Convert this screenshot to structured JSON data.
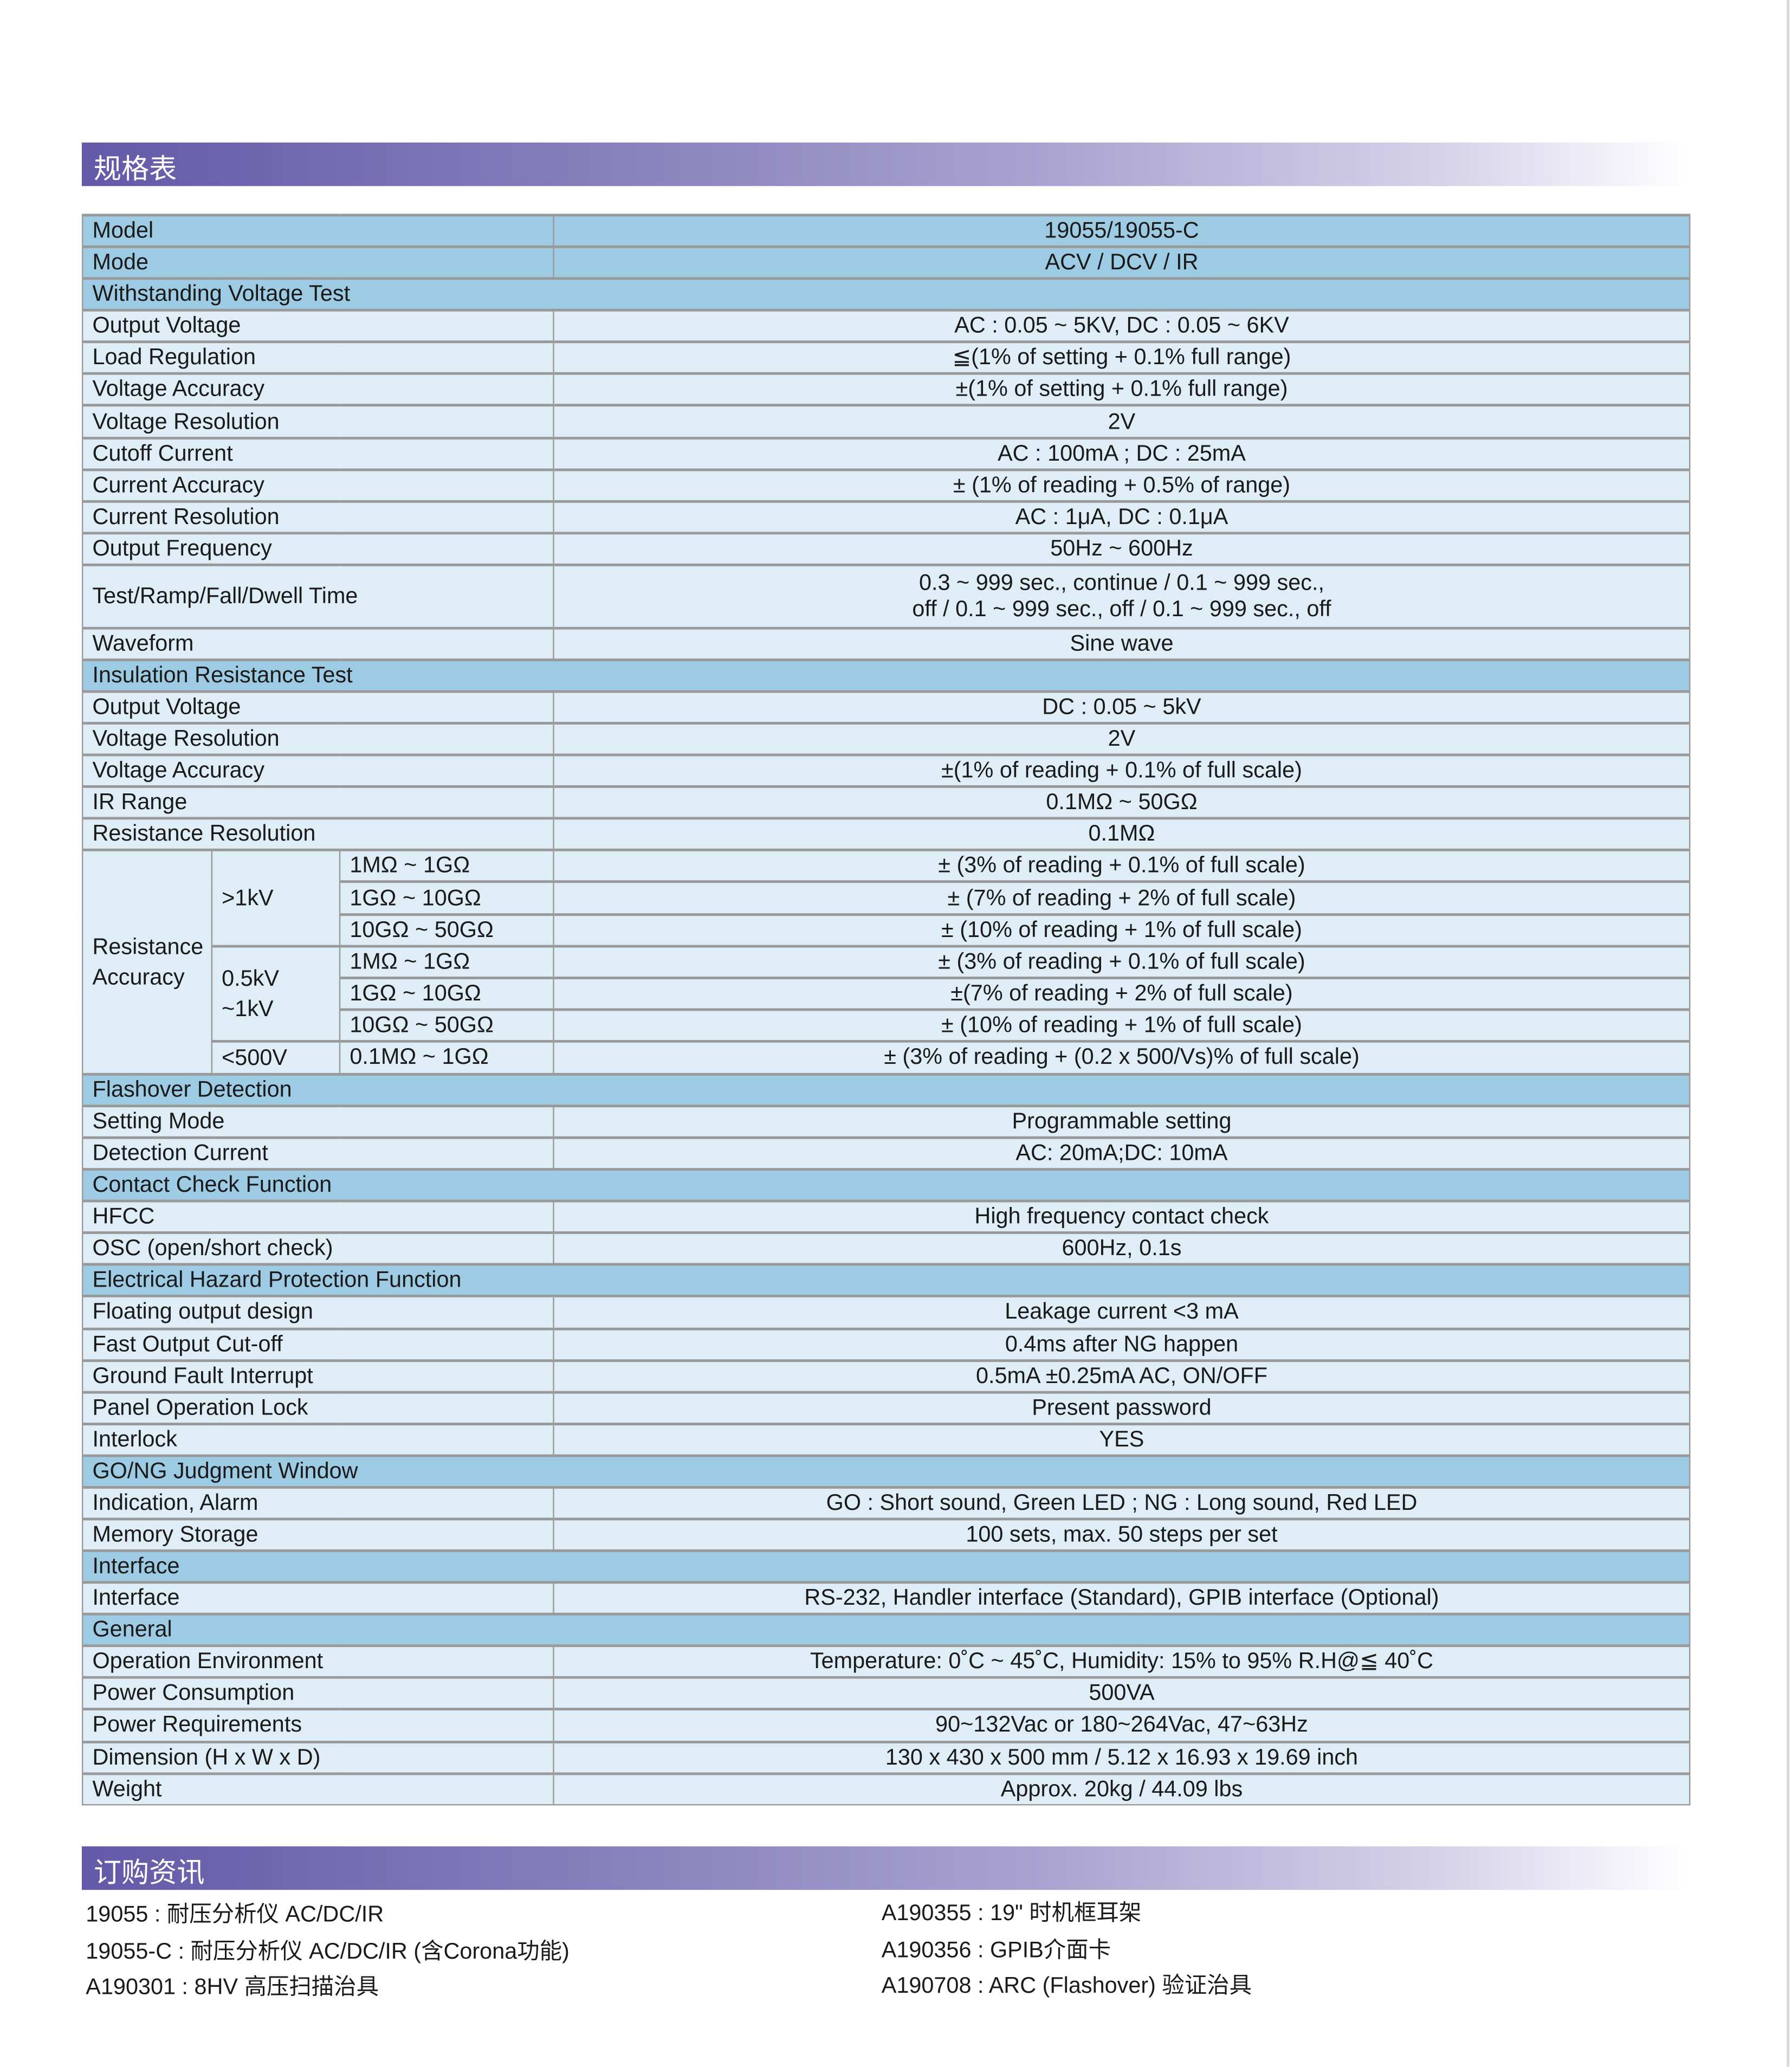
{
  "spec_title": "规格表",
  "order_title": "订购资讯",
  "colors": {
    "section_row": "#9dcbe3",
    "item_row": "#deedf6",
    "band_start": "#6359a8"
  },
  "header_rows": [
    {
      "label": "Model",
      "value": "19055/19055-C"
    },
    {
      "label": "Mode",
      "value": "ACV / DCV / IR"
    }
  ],
  "sections": [
    {
      "title": "Withstanding Voltage Test",
      "rows": [
        {
          "label": "Output Voltage",
          "value": "AC : 0.05 ~ 5KV, DC : 0.05 ~ 6KV"
        },
        {
          "label": "Load Regulation",
          "value": "≦(1% of setting + 0.1% full range)"
        },
        {
          "label": "Voltage Accuracy",
          "value": "±(1% of setting + 0.1% full range)"
        },
        {
          "label": "Voltage Resolution",
          "value": "2V"
        },
        {
          "label": "Cutoff Current",
          "value": "AC : 100mA ; DC : 25mA"
        },
        {
          "label": "Current Accuracy",
          "value": "± (1% of reading + 0.5% of range)"
        },
        {
          "label": "Current Resolution",
          "value": "AC : 1μA, DC : 0.1μA"
        },
        {
          "label": "Output Frequency",
          "value": "50Hz ~ 600Hz"
        },
        {
          "label": "Test/Ramp/Fall/Dwell Time",
          "value": "0.3 ~ 999 sec., continue / 0.1 ~ 999 sec.,",
          "value2": "off / 0.1 ~ 999 sec., off / 0.1 ~ 999 sec., off"
        },
        {
          "label": "Waveform",
          "value": "Sine wave"
        }
      ]
    },
    {
      "title": "Insulation Resistance Test",
      "rows": [
        {
          "label": "Output Voltage",
          "value": "DC : 0.05 ~ 5kV"
        },
        {
          "label": "Voltage Resolution",
          "value": "2V"
        },
        {
          "label": "Voltage Accuracy",
          "value": "±(1% of reading + 0.1%  of full scale)"
        },
        {
          "label": "IR Range",
          "value": "0.1MΩ ~ 50GΩ"
        },
        {
          "label": "Resistance Resolution",
          "value": "0.1MΩ"
        }
      ],
      "resistance_accuracy": {
        "label_line1": "Resistance",
        "label_line2": "Accuracy",
        "groups": [
          {
            "voltage": ">1kV",
            "voltage2": "",
            "rows": [
              {
                "range": "1MΩ ~ 1GΩ",
                "value": "± (3% of reading + 0.1% of full scale)"
              },
              {
                "range": "1GΩ ~ 10GΩ",
                "value": "± (7% of reading + 2% of full scale)"
              },
              {
                "range": "10GΩ ~ 50GΩ",
                "value": "± (10% of reading + 1% of full scale)"
              }
            ]
          },
          {
            "voltage": "0.5kV",
            "voltage2": "~1kV",
            "rows": [
              {
                "range": "1MΩ ~ 1GΩ",
                "value": "± (3% of reading + 0.1% of full scale)"
              },
              {
                "range": "1GΩ ~ 10GΩ",
                "value": "±(7% of reading + 2% of full scale)"
              },
              {
                "range": "10GΩ ~ 50GΩ",
                "value": "± (10% of reading + 1% of full scale)"
              }
            ]
          },
          {
            "voltage": "<500V",
            "voltage2": "",
            "rows": [
              {
                "range": "0.1MΩ ~ 1GΩ",
                "value": "± (3% of reading + (0.2 x 500/Vs)%  of full scale)"
              }
            ]
          }
        ]
      }
    },
    {
      "title": "Flashover Detection",
      "rows": [
        {
          "label": "Setting Mode",
          "value": "Programmable setting"
        },
        {
          "label": "Detection Current",
          "value": "AC: 20mA;DC: 10mA"
        }
      ]
    },
    {
      "title": "Contact Check Function",
      "rows": [
        {
          "label": "HFCC",
          "value": "High frequency contact check"
        },
        {
          "label": "OSC (open/short check)",
          "value": "600Hz, 0.1s"
        }
      ]
    },
    {
      "title": "Electrical Hazard Protection Function",
      "rows": [
        {
          "label": "Floating output design",
          "value": "Leakage current <3 mA"
        },
        {
          "label": "Fast Output Cut-off",
          "value": "0.4ms after NG happen"
        },
        {
          "label": "Ground Fault Interrupt",
          "value": "0.5mA ±0.25mA AC, ON/OFF"
        },
        {
          "label": "Panel Operation Lock",
          "value": "Present password"
        },
        {
          "label": "Interlock",
          "value": "YES"
        }
      ]
    },
    {
      "title": "GO/NG Judgment Window",
      "rows": [
        {
          "label": "Indication, Alarm",
          "value": "GO : Short sound, Green LED ; NG : Long sound, Red LED"
        },
        {
          "label": "Memory Storage",
          "value": "100 sets, max. 50 steps per set"
        }
      ]
    },
    {
      "title": "Interface",
      "rows": [
        {
          "label": "Interface",
          "value": "RS-232, Handler interface (Standard), GPIB interface  (Optional)"
        }
      ]
    },
    {
      "title": "General",
      "rows": [
        {
          "label": "Operation Environment",
          "value": "Temperature: 0˚C ~ 45˚C, Humidity: 15% to 95% R.H@≦ 40˚C"
        },
        {
          "label": "Power Consumption",
          "value": "500VA"
        },
        {
          "label": "Power Requirements",
          "value": "90~132Vac or 180~264Vac, 47~63Hz"
        },
        {
          "label": "Dimension (H x W x D)",
          "value": "130 x 430 x 500 mm / 5.12 x 16.93 x 19.69 inch"
        },
        {
          "label": "Weight",
          "value": "Approx. 20kg / 44.09 lbs"
        }
      ]
    }
  ],
  "ordering": {
    "left": [
      "19055 : 耐压分析仪 AC/DC/IR",
      "19055-C : 耐压分析仪 AC/DC/IR (含Corona功能)",
      "A190301 : 8HV 高压扫描治具"
    ],
    "right": [
      "A190355 : 19\" 时机框耳架",
      "A190356 : GPIB介面卡",
      "A190708 : ARC (Flashover) 验证治具"
    ]
  }
}
